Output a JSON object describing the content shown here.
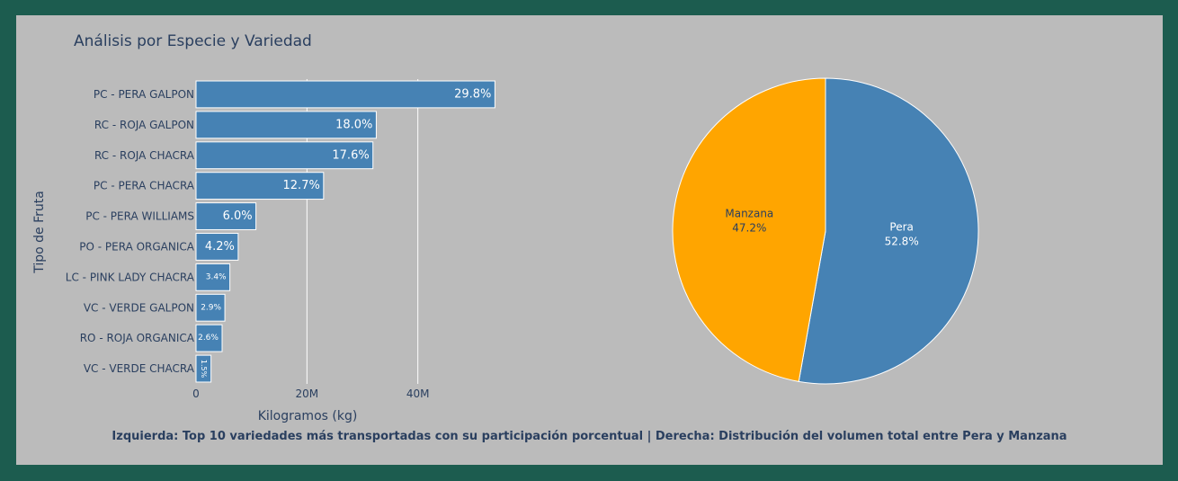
{
  "title": "Análisis por Especie y Variedad",
  "caption": "Izquierda: Top 10 variedades más transportadas con su participación porcentual | Derecha: Distribución del volumen total entre Pera y Manzana",
  "colors": {
    "frame": "#1c5c4f",
    "panel": "#bbbbbb",
    "bar": "#4682b4",
    "pera": "#4682b4",
    "manzana": "#ffa500",
    "text": "#2a3f5f"
  },
  "chart_data": [
    {
      "type": "bar",
      "orientation": "horizontal",
      "xlabel": "Kilogramos (kg)",
      "ylabel": "Tipo de Fruta",
      "xticks": [
        "0",
        "20M",
        "40M"
      ],
      "xtick_values": [
        0,
        20000000,
        40000000
      ],
      "xlim": [
        0,
        54000000
      ],
      "grid": true,
      "categories": [
        "PC - PERA GALPON",
        "RC - ROJA GALPON",
        "RC - ROJA CHACRA",
        "PC - PERA CHACRA",
        "PC - PERA WILLIAMS",
        "PO - PERA ORGANICA",
        "LC - PINK LADY CHACRA",
        "VC - VERDE GALPON",
        "RO - ROJA ORGANICA",
        "VC - VERDE CHACRA"
      ],
      "values": [
        53900000,
        32500000,
        31900000,
        23000000,
        10800000,
        7600000,
        6100000,
        5200000,
        4700000,
        2700000
      ],
      "labels": [
        "29.8%",
        "18.0%",
        "17.6%",
        "12.7%",
        "6.0%",
        "4.2%",
        "3.4%",
        "2.9%",
        "2.6%",
        "1.5%"
      ]
    },
    {
      "type": "pie",
      "slices": [
        {
          "name": "Pera",
          "value": 52.8,
          "label": "52.8%"
        },
        {
          "name": "Manzana",
          "value": 47.2,
          "label": "47.2%"
        }
      ]
    }
  ]
}
